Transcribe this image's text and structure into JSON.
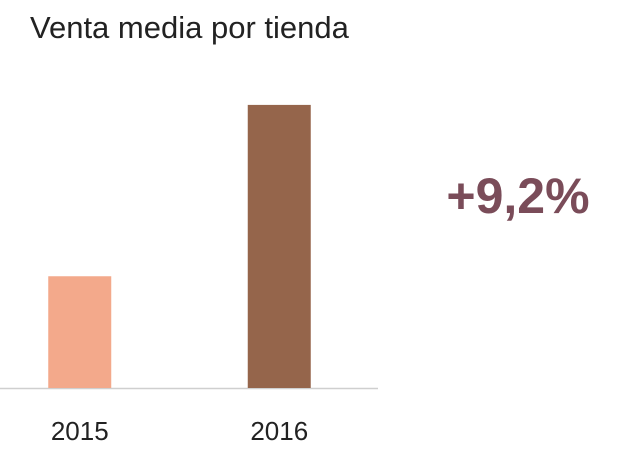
{
  "chart_data": {
    "type": "bar",
    "title": "Venta media por tienda",
    "categories": [
      "2015",
      "2016"
    ],
    "values": [
      100,
      109.2
    ],
    "colors": [
      "#f3a98b",
      "#95654b"
    ],
    "ylim": [
      94,
      110
    ],
    "annotation": "+9,2%"
  }
}
